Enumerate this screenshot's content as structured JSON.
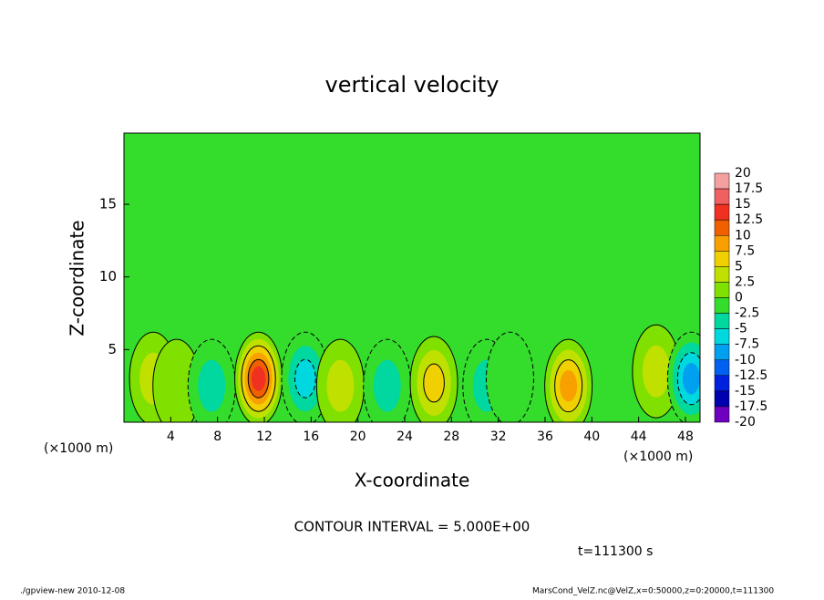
{
  "chart_data": {
    "type": "contour",
    "title": "vertical velocity",
    "xlabel": "X-coordinate",
    "ylabel": "Z-coordinate",
    "x_unit": "(×1000 m)",
    "contour_note": "CONTOUR INTERVAL = 5.000E+00",
    "time_label": "t=111300 s",
    "footer_left": "./gpview-new  2010-12-08",
    "footer_right": "MarsCond_VelZ.nc@VelZ,x=0:50000,z=0:20000,t=111300",
    "background_color": "#34dc2c",
    "xlim": [
      0,
      49.25
    ],
    "xticks": [
      4,
      8,
      12,
      16,
      20,
      24,
      28,
      32,
      36,
      40,
      44,
      48
    ],
    "ylim": [
      0,
      19.9
    ],
    "yticks": [
      5,
      10,
      15
    ],
    "colorbar_levels": [
      20,
      17.5,
      15,
      12.5,
      10,
      7.5,
      5,
      2.5,
      0,
      -2.5,
      -5,
      -7.5,
      -10,
      -12.5,
      -15,
      -17.5,
      -20
    ],
    "colorbar_colors": [
      "#f4a0a0",
      "#f06060",
      "#f03020",
      "#f06000",
      "#f8a000",
      "#f0d000",
      "#c0e000",
      "#80e000",
      "#34dc2c",
      "#00d8a0",
      "#00d8e0",
      "#00a0f0",
      "#0060f0",
      "#0020e0",
      "#0000b0",
      "#7000c0"
    ],
    "x": [
      2.5,
      4.5,
      7.5,
      11.5,
      15.5,
      18.5,
      22.5,
      26.5,
      31,
      33,
      38,
      45.5,
      48.5
    ],
    "z": [
      3,
      2.5,
      2.5,
      3,
      3,
      2.5,
      2.5,
      2.7,
      2.5,
      3,
      2.5,
      3.5,
      3
    ],
    "values": [
      3,
      2.5,
      -5,
      14,
      -6,
      5,
      -3,
      6,
      -3,
      -2.5,
      8,
      5,
      -8
    ]
  }
}
